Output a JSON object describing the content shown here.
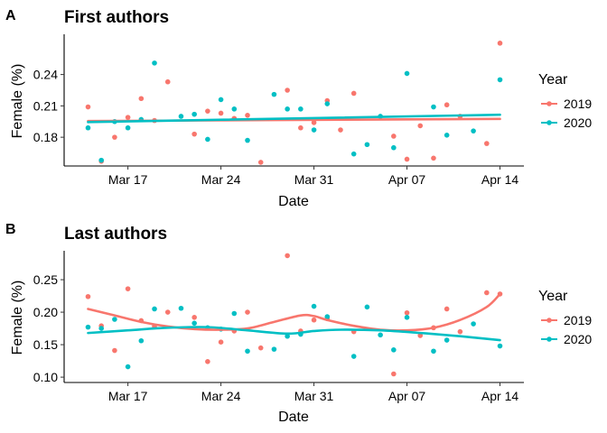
{
  "chart_data": [
    {
      "type": "scatter",
      "panel_tag": "A",
      "title": "First authors",
      "xlabel": "Date",
      "ylabel": "Female (%)",
      "x_ticks": [
        {
          "day": 3,
          "label": "Mar 17"
        },
        {
          "day": 10,
          "label": "Mar 24"
        },
        {
          "day": 17,
          "label": "Mar 31"
        },
        {
          "day": 24,
          "label": "Apr 07"
        },
        {
          "day": 31,
          "label": "Apr 14"
        }
      ],
      "y_ticks": [
        {
          "value": 0.18,
          "label": "0.18"
        },
        {
          "value": 0.21,
          "label": "0.21"
        },
        {
          "value": 0.24,
          "label": "0.24"
        }
      ],
      "xlim": [
        -1.8,
        32.8
      ],
      "ylim": [
        0.1525,
        0.2785
      ],
      "legend": {
        "title": "Year",
        "position": "right"
      },
      "series": [
        {
          "name": "2019",
          "color": "#F8766D",
          "points": [
            [
              0,
              0.209
            ],
            [
              1,
              0.157
            ],
            [
              2,
              0.18
            ],
            [
              3,
              0.199
            ],
            [
              4,
              0.217
            ],
            [
              5,
              0.196
            ],
            [
              6,
              0.233
            ],
            [
              8,
              0.183
            ],
            [
              9,
              0.205
            ],
            [
              10,
              0.203
            ],
            [
              11,
              0.198
            ],
            [
              12,
              0.201
            ],
            [
              13,
              0.156
            ],
            [
              15,
              0.225
            ],
            [
              16,
              0.189
            ],
            [
              17,
              0.194
            ],
            [
              18,
              0.215
            ],
            [
              19,
              0.187
            ],
            [
              20,
              0.222
            ],
            [
              23,
              0.181
            ],
            [
              24,
              0.159
            ],
            [
              25,
              0.191
            ],
            [
              26,
              0.16
            ],
            [
              27,
              0.211
            ],
            [
              28,
              0.2
            ],
            [
              30,
              0.174
            ],
            [
              31,
              0.27
            ]
          ],
          "trend": [
            [
              0,
              0.1955
            ],
            [
              31,
              0.1975
            ]
          ]
        },
        {
          "name": "2020",
          "color": "#00BFC4",
          "points": [
            [
              0,
              0.189
            ],
            [
              1,
              0.158
            ],
            [
              2,
              0.195
            ],
            [
              3,
              0.189
            ],
            [
              4,
              0.197
            ],
            [
              5,
              0.251
            ],
            [
              7,
              0.2
            ],
            [
              8,
              0.202
            ],
            [
              9,
              0.178
            ],
            [
              10,
              0.216
            ],
            [
              11,
              0.207
            ],
            [
              12,
              0.177
            ],
            [
              14,
              0.221
            ],
            [
              15,
              0.207
            ],
            [
              16,
              0.207
            ],
            [
              17,
              0.187
            ],
            [
              18,
              0.212
            ],
            [
              20,
              0.164
            ],
            [
              21,
              0.173
            ],
            [
              22,
              0.2
            ],
            [
              23,
              0.17
            ],
            [
              24,
              0.241
            ],
            [
              26,
              0.209
            ],
            [
              27,
              0.182
            ],
            [
              29,
              0.186
            ],
            [
              31,
              0.235
            ]
          ],
          "trend": [
            [
              0,
              0.1945
            ],
            [
              31,
              0.2015
            ]
          ]
        }
      ]
    },
    {
      "type": "scatter",
      "panel_tag": "B",
      "title": "Last authors",
      "xlabel": "Date",
      "ylabel": "Female (%)",
      "x_ticks": [
        {
          "day": 3,
          "label": "Mar 17"
        },
        {
          "day": 10,
          "label": "Mar 24"
        },
        {
          "day": 17,
          "label": "Mar 31"
        },
        {
          "day": 24,
          "label": "Apr 07"
        },
        {
          "day": 31,
          "label": "Apr 14"
        }
      ],
      "y_ticks": [
        {
          "value": 0.1,
          "label": "0.10"
        },
        {
          "value": 0.15,
          "label": "0.15"
        },
        {
          "value": 0.2,
          "label": "0.20"
        },
        {
          "value": 0.25,
          "label": "0.25"
        }
      ],
      "xlim": [
        -1.8,
        32.8
      ],
      "ylim": [
        0.0918,
        0.2945
      ],
      "legend": {
        "title": "Year",
        "position": "right"
      },
      "series": [
        {
          "name": "2019",
          "color": "#F8766D",
          "points": [
            [
              0,
              0.224
            ],
            [
              1,
              0.179
            ],
            [
              2,
              0.141
            ],
            [
              3,
              0.236
            ],
            [
              4,
              0.187
            ],
            [
              5,
              0.178
            ],
            [
              6,
              0.2
            ],
            [
              8,
              0.192
            ],
            [
              9,
              0.124
            ],
            [
              10,
              0.154
            ],
            [
              11,
              0.171
            ],
            [
              12,
              0.2
            ],
            [
              13,
              0.145
            ],
            [
              15,
              0.287
            ],
            [
              16,
              0.171
            ],
            [
              17,
              0.188
            ],
            [
              18,
              0.19
            ],
            [
              20,
              0.17
            ],
            [
              23,
              0.105
            ],
            [
              24,
              0.199
            ],
            [
              25,
              0.164
            ],
            [
              26,
              0.176
            ],
            [
              27,
              0.205
            ],
            [
              28,
              0.17
            ],
            [
              30,
              0.23
            ],
            [
              31,
              0.228
            ]
          ],
          "trend": [
            [
              0,
              0.205
            ],
            [
              2,
              0.195
            ],
            [
              4,
              0.185
            ],
            [
              6,
              0.178
            ],
            [
              8,
              0.174
            ],
            [
              10,
              0.173
            ],
            [
              12,
              0.175
            ],
            [
              14,
              0.185
            ],
            [
              16,
              0.195
            ],
            [
              17,
              0.194
            ],
            [
              18,
              0.188
            ],
            [
              20,
              0.179
            ],
            [
              22,
              0.173
            ],
            [
              24,
              0.172
            ],
            [
              26,
              0.176
            ],
            [
              28,
              0.188
            ],
            [
              30,
              0.208
            ],
            [
              31,
              0.228
            ]
          ]
        },
        {
          "name": "2020",
          "color": "#00BFC4",
          "points": [
            [
              0,
              0.177
            ],
            [
              1,
              0.175
            ],
            [
              2,
              0.189
            ],
            [
              3,
              0.116
            ],
            [
              4,
              0.156
            ],
            [
              5,
              0.205
            ],
            [
              7,
              0.206
            ],
            [
              8,
              0.183
            ],
            [
              9,
              0.176
            ],
            [
              10,
              0.174
            ],
            [
              11,
              0.198
            ],
            [
              12,
              0.14
            ],
            [
              14,
              0.143
            ],
            [
              15,
              0.163
            ],
            [
              16,
              0.166
            ],
            [
              17,
              0.209
            ],
            [
              18,
              0.193
            ],
            [
              20,
              0.132
            ],
            [
              21,
              0.208
            ],
            [
              22,
              0.165
            ],
            [
              23,
              0.142
            ],
            [
              24,
              0.192
            ],
            [
              26,
              0.14
            ],
            [
              27,
              0.157
            ],
            [
              29,
              0.182
            ],
            [
              31,
              0.148
            ]
          ],
          "trend": [
            [
              0,
              0.168
            ],
            [
              3,
              0.172
            ],
            [
              6,
              0.176
            ],
            [
              9,
              0.177
            ],
            [
              12,
              0.172
            ],
            [
              15,
              0.167
            ],
            [
              17,
              0.171
            ],
            [
              19,
              0.173
            ],
            [
              22,
              0.172
            ],
            [
              25,
              0.168
            ],
            [
              28,
              0.163
            ],
            [
              31,
              0.157
            ]
          ]
        }
      ]
    }
  ]
}
